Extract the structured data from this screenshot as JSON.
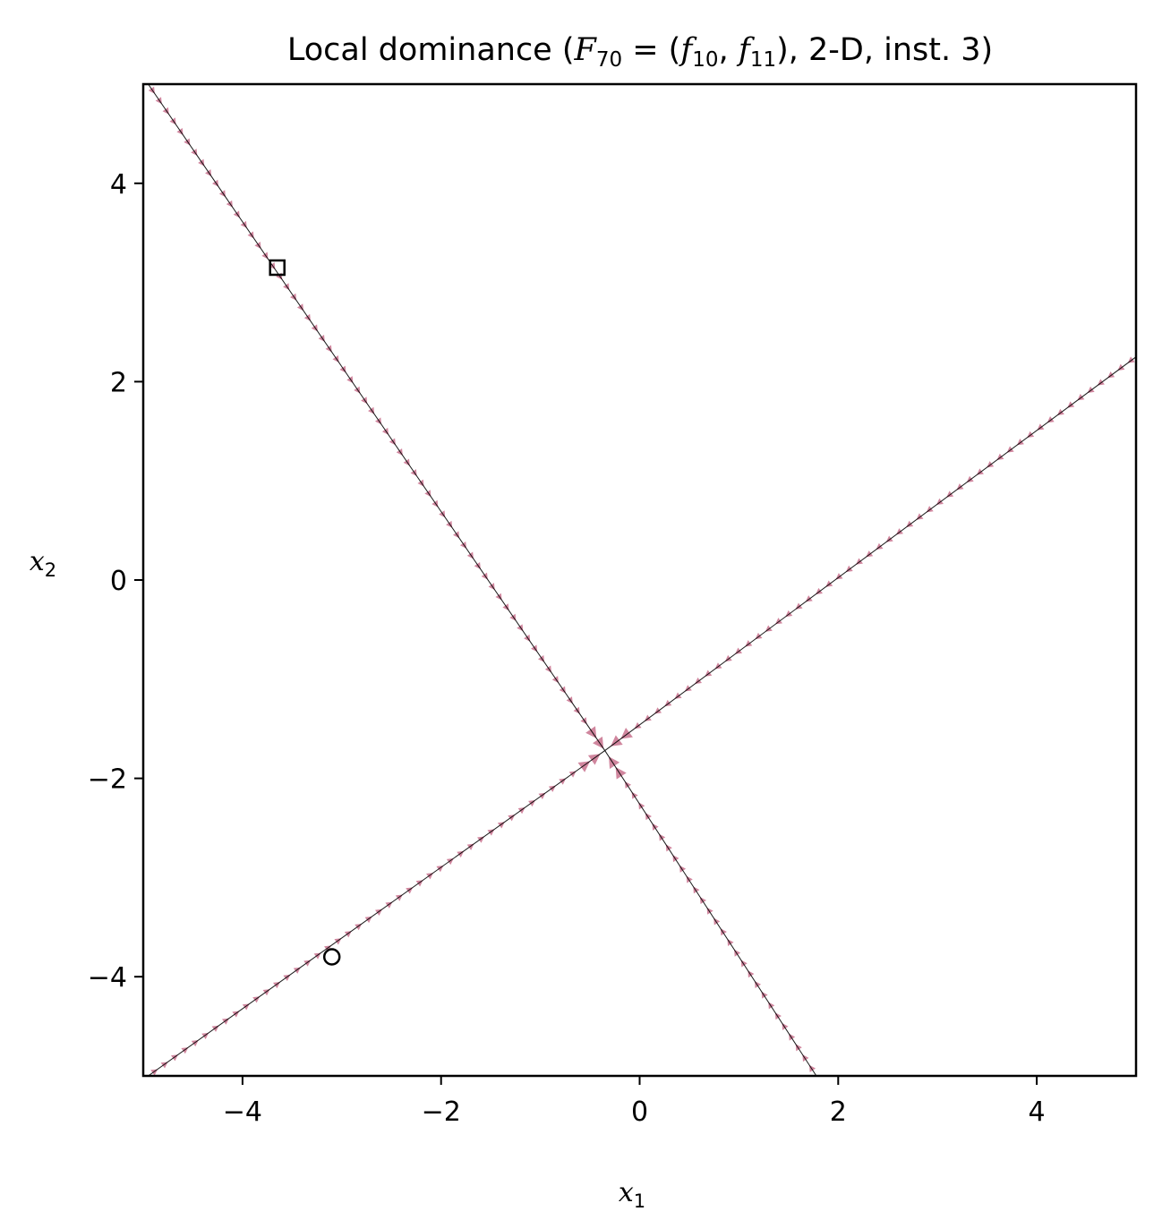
{
  "chart_data": {
    "type": "line",
    "title": {
      "prefix": "Local dominance (",
      "F": "F",
      "F_sub": "70",
      "eq": " = (",
      "f1": "f",
      "f1_sub": "10",
      "comma": ", ",
      "f2": "f",
      "f2_sub": "11",
      "suffix": "), 2-D, inst. 3)"
    },
    "xlabel": {
      "base": "x",
      "sub": "1"
    },
    "ylabel": {
      "base": "x",
      "sub": "2"
    },
    "xlim": [
      -5,
      5
    ],
    "ylim": [
      -5,
      5
    ],
    "xticks": [
      -4,
      -2,
      0,
      2,
      4
    ],
    "yticks": [
      -4,
      -2,
      0,
      2,
      4
    ],
    "xtick_labels": [
      "−4",
      "−2",
      "0",
      "2",
      "4"
    ],
    "ytick_labels": [
      "−4",
      "−2",
      "0",
      "2",
      "4"
    ],
    "grid": false,
    "series": [
      {
        "points": [
          [
            -4.95,
            5.0
          ],
          [
            -0.35,
            -1.72
          ],
          [
            1.78,
            -5.0
          ]
        ],
        "color": "#000000"
      },
      {
        "points": [
          [
            -4.95,
            -5.0
          ],
          [
            -0.35,
            -1.72
          ],
          [
            5.0,
            2.25
          ]
        ],
        "color": "#000000"
      }
    ],
    "arrow_color": "#c8718d",
    "optima": [
      {
        "marker": "square",
        "x": -3.65,
        "y": 3.15
      },
      {
        "marker": "circle",
        "x": -3.1,
        "y": -3.8
      }
    ],
    "intersection": {
      "x": -0.35,
      "y": -1.72
    }
  }
}
